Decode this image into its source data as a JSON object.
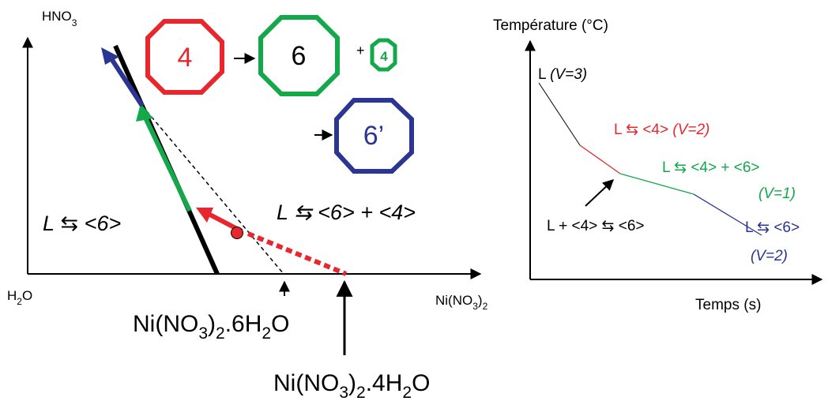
{
  "left_diagram": {
    "y_axis_label": {
      "main": "HNO",
      "sub": "3"
    },
    "origin_label": {
      "pre": "H",
      "sub": "2",
      "post": "O"
    },
    "x_axis_label": {
      "pre": "Ni(NO",
      "sub1": "3",
      "mid": ")",
      "sub2": "2"
    },
    "hexahydrate_label": {
      "a": "Ni(NO",
      "s1": "3",
      "b": ")",
      "s2": "2",
      "c": ".6H",
      "s3": "2",
      "d": "O"
    },
    "tetrahydrate_label": {
      "a": "Ni(NO",
      "s1": "3",
      "b": ")",
      "s2": "2",
      "c": ".4H",
      "s3": "2",
      "d": "O"
    },
    "region_left": {
      "l": "L",
      "eq": " ⇆ ",
      "phase": "<6>"
    },
    "region_right": {
      "l": "L",
      "rest": " ⇆ <6> + <4>"
    },
    "octagons": [
      {
        "label": "4",
        "color": "#e8262e"
      },
      {
        "label": "6",
        "color": "#13a84a"
      },
      {
        "label": "4",
        "color": "#13a84a"
      },
      {
        "label": "6’",
        "color": "#2b3592"
      }
    ],
    "plus_sign": "+"
  },
  "right_diagram": {
    "y_axis_label": "Température (°C)",
    "x_axis_label": "Temps (s)",
    "labels": {
      "l_v3": {
        "a": "L ",
        "b": "(V=3)",
        "color": "#000000"
      },
      "l_4": {
        "a": "L ⇆ <4> ",
        "b": "(V=2)",
        "color": "#e8262e"
      },
      "l_4_6": {
        "a": "L ⇆ <4> + <6>",
        "color": "#13a84a"
      },
      "v1": {
        "a": "(V=1)",
        "color": "#13a84a"
      },
      "peritectic": {
        "a": "L + <4> ⇆ <6>",
        "color": "#000000"
      },
      "l_6": {
        "a": "L ⇆ <6>",
        "color": "#2b3592"
      },
      "v2b": {
        "a": "(V=2)",
        "color": "#2b3592"
      }
    }
  },
  "colors": {
    "red": "#e8262e",
    "green": "#13a84a",
    "blue": "#2b3592",
    "black": "#000000"
  }
}
